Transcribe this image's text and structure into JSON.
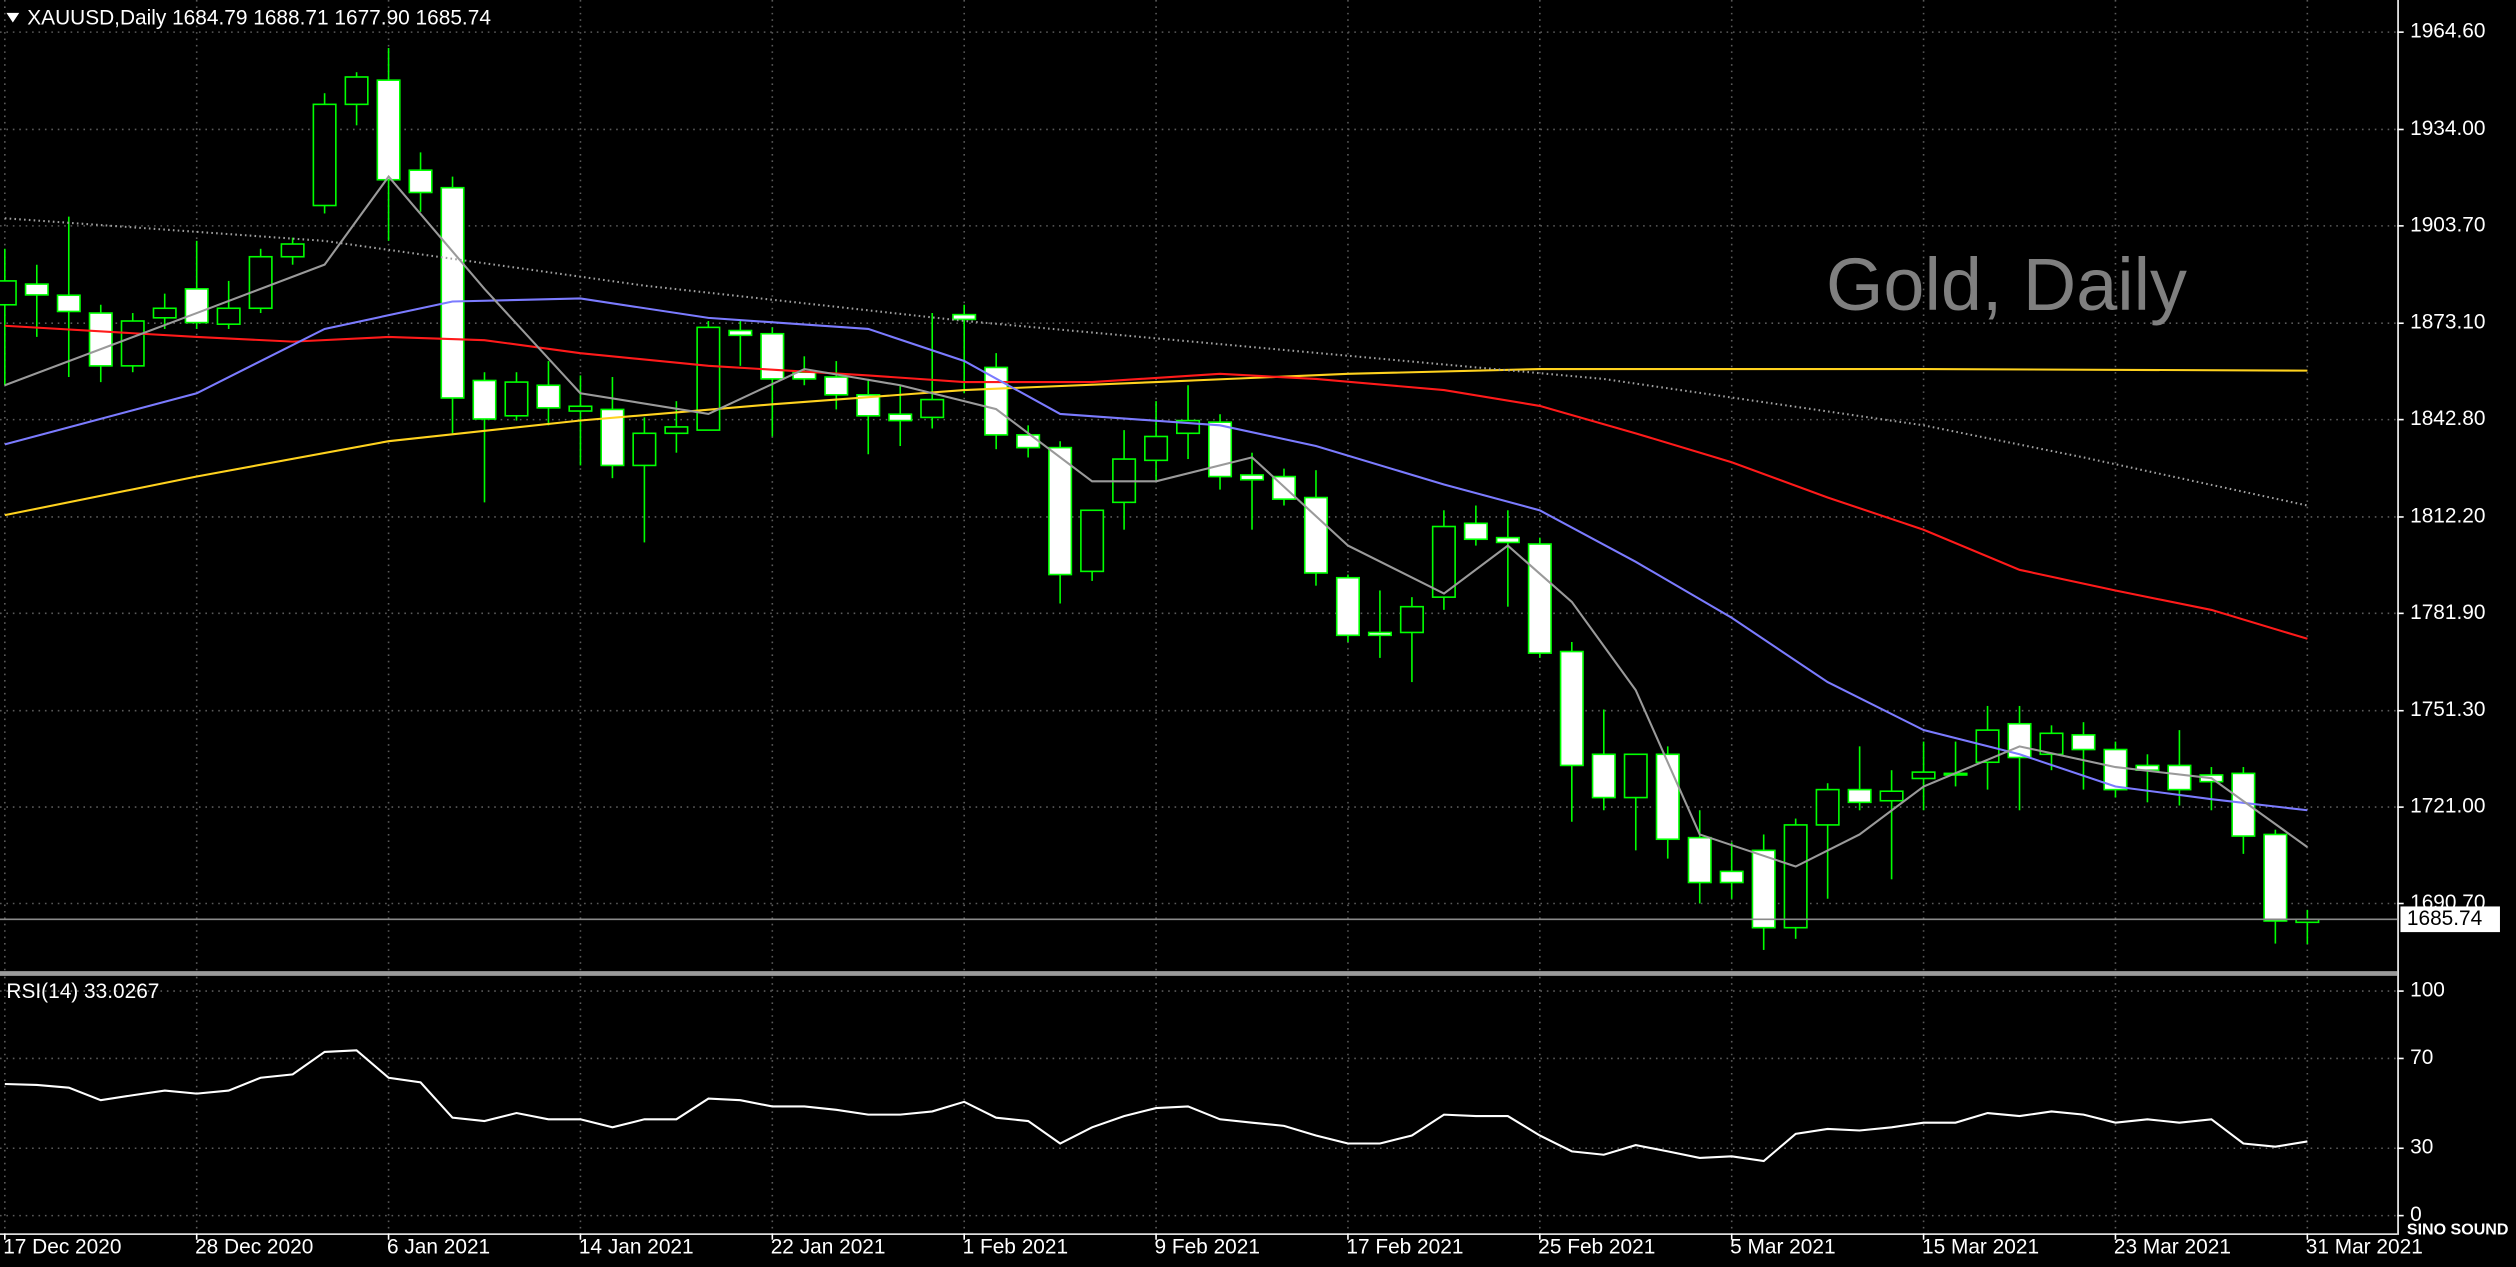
{
  "chart_data": [
    {
      "type": "candlestick",
      "title": "XAUUSD,Daily  1684.79 1688.71 1677.90 1685.74",
      "annotation": "Gold, Daily",
      "watermark": "SINO SOUND",
      "categories": [
        "17 Dec 2020",
        null,
        null,
        null,
        null,
        null,
        "28 Dec 2020",
        null,
        null,
        null,
        null,
        null,
        "6 Jan 2021",
        null,
        null,
        null,
        null,
        null,
        "14 Jan 2021",
        null,
        null,
        null,
        null,
        null,
        "22 Jan 2021",
        null,
        null,
        null,
        null,
        null,
        "1 Feb 2021",
        null,
        null,
        null,
        null,
        null,
        "9 Feb 2021",
        null,
        null,
        null,
        null,
        null,
        "17 Feb 2021",
        null,
        null,
        null,
        null,
        null,
        "25 Feb 2021",
        null,
        null,
        null,
        null,
        null,
        "5 Mar 2021",
        null,
        null,
        null,
        null,
        null,
        "15 Mar 2021",
        null,
        null,
        null,
        null,
        null,
        "23 Mar 2021",
        null,
        null,
        null,
        null,
        null,
        "31 Mar 2021"
      ],
      "open": [
        1878.9,
        1885.4,
        1881.9,
        1876.3,
        1859.7,
        1874.8,
        1883.9,
        1872.8,
        1877.8,
        1894,
        1910.1,
        1941.9,
        1949.5,
        1921.2,
        1915.7,
        1855.1,
        1844,
        1853.6,
        1845.5,
        1846,
        1828.4,
        1838.5,
        1839.5,
        1870.8,
        1869.8,
        1857.7,
        1856.2,
        1850.6,
        1844.5,
        1843.5,
        1875.8,
        1859.2,
        1838,
        1834,
        1795.1,
        1816.8,
        1830,
        1838.5,
        1842,
        1825.4,
        1824.9,
        1818.3,
        1793.1,
        1775.9,
        1775.9,
        1787,
        1810.2,
        1805.7,
        1803.7,
        1769.9,
        1737.6,
        1724,
        1737.6,
        1711.4,
        1700.8,
        1707.4,
        1683.1,
        1715.4,
        1726.5,
        1723,
        1730,
        1731.6,
        1735.1,
        1747.2,
        1737.6,
        1743.7,
        1739.1,
        1734.1,
        1734.1,
        1731.1,
        1731.6,
        1712.4,
        1684.79
      ],
      "high": [
        1896.5,
        1891.5,
        1906.6,
        1878.9,
        1876.3,
        1882.4,
        1899,
        1886.4,
        1896.5,
        1900,
        1945.4,
        1952,
        1959.6,
        1926.8,
        1919.2,
        1857.7,
        1857.7,
        1861.2,
        1856.7,
        1856.2,
        1843.5,
        1848.6,
        1873.8,
        1873.8,
        1871.8,
        1862.7,
        1861.2,
        1855.6,
        1853.6,
        1876.3,
        1878.9,
        1863.7,
        1841,
        1836,
        1814.3,
        1839.5,
        1848.6,
        1853.6,
        1844.5,
        1832.4,
        1827.4,
        1826.9,
        1794.1,
        1789.1,
        1787,
        1814.3,
        1815.8,
        1814.3,
        1805.7,
        1772.9,
        1751.7,
        1737.6,
        1740.1,
        1720,
        1709.9,
        1712.4,
        1717.4,
        1728.5,
        1740.1,
        1732.6,
        1741.6,
        1741.6,
        1752.8,
        1752.8,
        1746.7,
        1747.7,
        1741.6,
        1737.6,
        1745.2,
        1733.6,
        1733.6,
        1713.9,
        1688.71
      ],
      "low": [
        1853.6,
        1868.8,
        1856.2,
        1854.6,
        1857.7,
        1871.3,
        1871.3,
        1871.3,
        1876.3,
        1891.5,
        1907.6,
        1935.3,
        1899,
        1908.1,
        1838.5,
        1816.8,
        1842.5,
        1841,
        1828.4,
        1824.4,
        1804.2,
        1832.4,
        1839.5,
        1859.7,
        1837.5,
        1853.6,
        1846,
        1831.9,
        1834.5,
        1840,
        1851.1,
        1833.5,
        1830.9,
        1785,
        1792.1,
        1808.2,
        1823.4,
        1830.4,
        1820.8,
        1808.2,
        1815.8,
        1790.6,
        1772.9,
        1767.9,
        1760.3,
        1783,
        1803.2,
        1784,
        1767.9,
        1716.4,
        1720,
        1707.4,
        1704.8,
        1690.7,
        1692.2,
        1676.1,
        1679.6,
        1692.2,
        1720,
        1698.3,
        1720,
        1727.5,
        1726.5,
        1720,
        1732.6,
        1726.5,
        1724,
        1722.5,
        1721.5,
        1720,
        1706.3,
        1678.1,
        1677.9
      ],
      "close": [
        1886.4,
        1882,
        1876.8,
        1859.7,
        1873.8,
        1877.8,
        1873.3,
        1877.8,
        1894,
        1898,
        1941.9,
        1950.5,
        1918.2,
        1914.2,
        1849.6,
        1843,
        1854.6,
        1846.5,
        1847,
        1828.4,
        1838.5,
        1840.5,
        1871.8,
        1869.3,
        1855.6,
        1855.6,
        1850.6,
        1844,
        1842.5,
        1849.1,
        1874.3,
        1838,
        1834,
        1794.1,
        1814.3,
        1830.4,
        1837.5,
        1842.5,
        1824.9,
        1823.9,
        1817.8,
        1794.6,
        1775,
        1775,
        1784,
        1809.2,
        1805.2,
        1804.2,
        1769.4,
        1734.1,
        1724,
        1737.6,
        1710.9,
        1697.3,
        1697.3,
        1683.1,
        1715.4,
        1726.5,
        1722.5,
        1726,
        1732,
        1731.1,
        1745.2,
        1736.6,
        1744.2,
        1739.1,
        1726.5,
        1732.6,
        1726.5,
        1729,
        1711.9,
        1685.2,
        1685.74
      ],
      "up_color": "#000000",
      "down_color": "#ffffff",
      "wick_color": "#00ff00",
      "series": [
        {
          "color": "#ffd21e",
          "style": "solid",
          "x": [
            0,
            6,
            12,
            18,
            24,
            30,
            36,
            42,
            48,
            60,
            72
          ],
          "values": [
            1812.8,
            1824.9,
            1836.0,
            1842.5,
            1847.6,
            1852.1,
            1854.6,
            1857.2,
            1858.7,
            1858.7,
            1858.2
          ]
        },
        {
          "color": "#a0a0a0",
          "style": "dotted",
          "x": [
            0,
            10,
            20,
            30,
            40,
            50,
            60,
            65,
            72
          ],
          "values": [
            1906.1,
            1899.0,
            1884.9,
            1873.8,
            1864.7,
            1855.6,
            1841.0,
            1830.9,
            1815.8
          ]
        },
        {
          "color": "#ff1a1a",
          "style": "solid",
          "x": [
            0,
            6,
            9,
            12,
            15,
            18,
            22,
            27,
            30,
            34,
            38,
            41,
            45,
            48,
            51,
            54,
            57,
            60,
            63,
            66,
            69,
            72
          ],
          "values": [
            1872.3,
            1868.8,
            1867.3,
            1868.8,
            1867.8,
            1863.7,
            1859.7,
            1856.7,
            1854.6,
            1854.6,
            1857.2,
            1855.6,
            1852.1,
            1847.1,
            1838.5,
            1829.4,
            1818.3,
            1808.2,
            1795.6,
            1789.1,
            1783.0,
            1773.9
          ]
        },
        {
          "color": "#7b7bff",
          "style": "solid",
          "x": [
            0,
            6,
            10,
            14,
            18,
            22,
            27,
            30,
            33,
            38,
            41,
            45,
            48,
            51,
            54,
            57,
            60,
            63,
            66,
            69,
            72
          ],
          "values": [
            1835.0,
            1851.1,
            1871.3,
            1879.9,
            1880.9,
            1874.8,
            1871.3,
            1861.2,
            1844.6,
            1841.0,
            1834.5,
            1822.4,
            1814.3,
            1798.1,
            1780.5,
            1760.3,
            1745.2,
            1737.6,
            1727.5,
            1723.5,
            1720.0
          ]
        },
        {
          "color": "#9a9a9a",
          "style": "solid",
          "x": [
            0,
            6,
            10,
            12,
            15,
            18,
            22,
            25,
            28,
            31,
            34,
            36,
            39,
            42,
            45,
            47,
            49,
            51,
            53,
            56,
            58,
            60,
            63,
            66,
            69,
            72
          ],
          "values": [
            1853.6,
            1876.3,
            1891.5,
            1919.2,
            1883.9,
            1851.1,
            1844.6,
            1858.7,
            1853.6,
            1846.1,
            1823.4,
            1823.4,
            1830.9,
            1803.2,
            1788.1,
            1803.2,
            1785.5,
            1757.8,
            1712.4,
            1702.3,
            1712.4,
            1727.5,
            1740.1,
            1733.6,
            1730.1,
            1708.4
          ]
        }
      ],
      "ylim": [
        1669.2,
        1974.7
      ],
      "yticks": [
        {
          "value": 1964.6,
          "label": "1964.60"
        },
        {
          "value": 1934,
          "label": "1934.00"
        },
        {
          "value": 1903.7,
          "label": "1903.70"
        },
        {
          "value": 1873.1,
          "label": "1873.10"
        },
        {
          "value": 1842.8,
          "label": "1842.80"
        },
        {
          "value": 1812.2,
          "label": "1812.20"
        },
        {
          "value": 1781.9,
          "label": "1781.90"
        },
        {
          "value": 1751.3,
          "label": "1751.30"
        },
        {
          "value": 1721,
          "label": "1721.00"
        },
        {
          "value": 1690.7,
          "label": "1690.70"
        }
      ],
      "last_price": 1685.74,
      "grid": true
    },
    {
      "type": "line",
      "title": "RSI(14) 33.0267",
      "color": "#ffffff",
      "values": [
        58.6,
        58.2,
        57,
        51.4,
        53.6,
        55.7,
        54.3,
        55.7,
        61.4,
        62.9,
        72.9,
        73.6,
        61.4,
        59.3,
        43.6,
        42.1,
        45.7,
        42.9,
        42.9,
        39.3,
        42.9,
        42.9,
        52.1,
        51.4,
        48.6,
        48.6,
        47.1,
        45,
        45,
        46.4,
        50.7,
        43.6,
        42.1,
        32.1,
        39.3,
        44.3,
        47.9,
        48.6,
        42.9,
        41.4,
        40,
        35.7,
        32.1,
        32.1,
        35.7,
        45,
        44.3,
        44.3,
        35.7,
        28.6,
        27.1,
        31.4,
        28.6,
        25.7,
        26.4,
        24.3,
        36.4,
        38.6,
        37.9,
        39.3,
        41.4,
        41.4,
        45.7,
        44.3,
        46.4,
        45,
        41.4,
        42.9,
        41.4,
        42.9,
        32.1,
        30.7,
        33.0267
      ],
      "ylim": [
        -8.6,
        106.4
      ],
      "yticks": [
        100,
        70,
        30,
        0
      ],
      "grid": true
    }
  ]
}
